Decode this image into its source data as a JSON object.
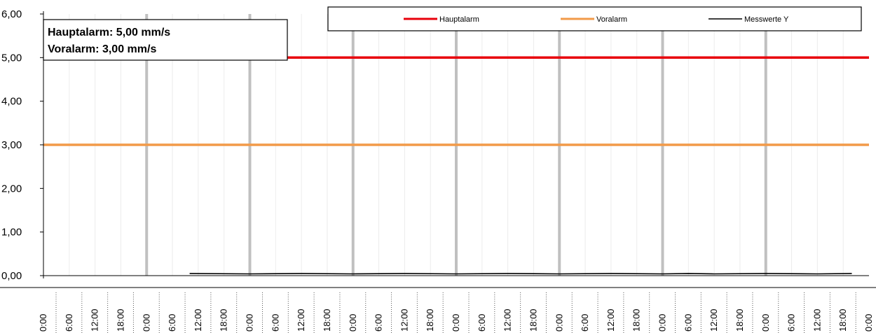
{
  "chart_data": {
    "type": "line",
    "title": "",
    "xlabel": "",
    "ylabel": "",
    "ylim": [
      0,
      6
    ],
    "y_ticks": [
      "0,00",
      "1,00",
      "2,00",
      "3,00",
      "4,00",
      "5,00",
      "6,00"
    ],
    "x_ticks": [
      "0:00",
      "6:00",
      "12:00",
      "18:00",
      "0:00",
      "6:00",
      "12:00",
      "18:00",
      "0:00",
      "6:00",
      "12:00",
      "18:00",
      "0:00",
      "6:00",
      "12:00",
      "18:00",
      "0:00",
      "6:00",
      "12:00",
      "18:00",
      "0:00",
      "6:00",
      "12:00",
      "18:00",
      "0:00",
      "6:00",
      "12:00",
      "18:00",
      "0:00",
      "6:00",
      "12:00",
      "18:00",
      "0:00"
    ],
    "x_range_hours": [
      0,
      192
    ],
    "grid": "vertical, major every 24 h",
    "legend_placement": "top-right",
    "series": [
      {
        "name": "Hauptalarm",
        "color": "#e8000b",
        "x_hours": [
          0,
          192
        ],
        "values": [
          5,
          5
        ]
      },
      {
        "name": "Voralarm",
        "color": "#f29a48",
        "x_hours": [
          0,
          192
        ],
        "values": [
          3,
          3
        ]
      },
      {
        "name": "Messwerte Y",
        "color": "#000000",
        "x_hours": [
          34,
          48,
          60,
          72,
          84,
          96,
          108,
          120,
          132,
          144,
          150,
          156,
          168,
          180,
          188
        ],
        "values": [
          0.05,
          0.04,
          0.05,
          0.04,
          0.05,
          0.04,
          0.05,
          0.04,
          0.05,
          0.04,
          0.05,
          0.04,
          0.05,
          0.04,
          0.05
        ]
      }
    ],
    "annotations": [
      "Hauptalarm: 5,00 mm/s",
      "Voralarm: 3,00 mm/s"
    ]
  }
}
